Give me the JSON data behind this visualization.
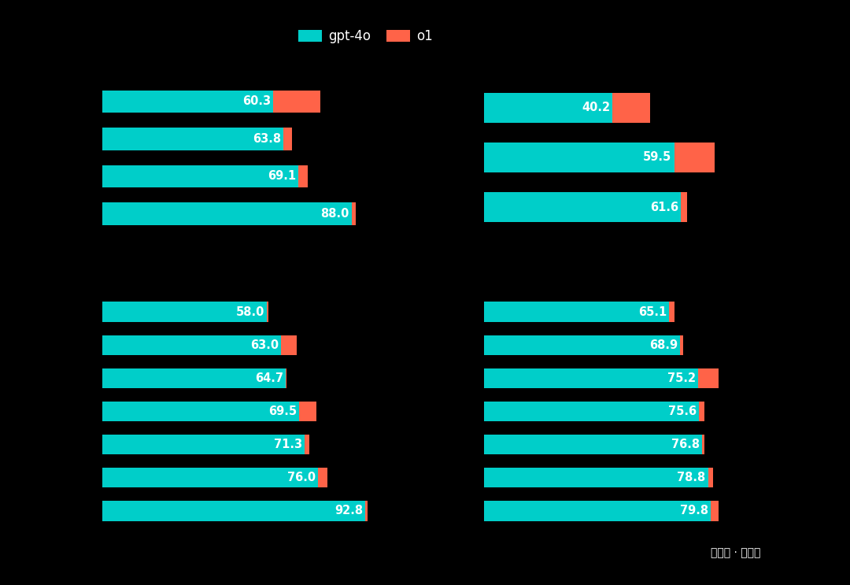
{
  "background_color": "#000000",
  "teal_color": "#00CEC9",
  "orange_color": "#FF6348",
  "text_color": "#ffffff",
  "legend_labels": [
    "gpt-4o",
    "o1"
  ],
  "top_left": {
    "gpt4o": [
      60.3,
      63.8,
      69.1,
      88.0
    ],
    "o1": [
      77.0,
      67.0,
      72.5,
      89.5
    ],
    "xlim": 100
  },
  "top_right": {
    "gpt4o": [
      40.2,
      59.5,
      61.6
    ],
    "o1": [
      52.0,
      72.0,
      63.5
    ],
    "xlim": 80
  },
  "bottom_left": {
    "gpt4o": [
      58.0,
      63.0,
      64.7,
      69.5,
      71.3,
      76.0,
      92.8
    ],
    "o1": [
      58.5,
      68.5,
      65.0,
      75.5,
      73.0,
      79.5,
      93.5
    ],
    "xlim": 100
  },
  "bottom_right": {
    "gpt4o": [
      65.1,
      68.9,
      75.2,
      75.6,
      76.8,
      78.8,
      79.8
    ],
    "o1": [
      67.0,
      70.0,
      82.5,
      77.5,
      77.5,
      80.5,
      82.5
    ],
    "xlim": 90
  },
  "bar_height": 0.6,
  "bar_gap": 0.15,
  "value_fontsize": 10.5,
  "legend_fontsize": 12,
  "watermark": "公众号 · 架构师"
}
